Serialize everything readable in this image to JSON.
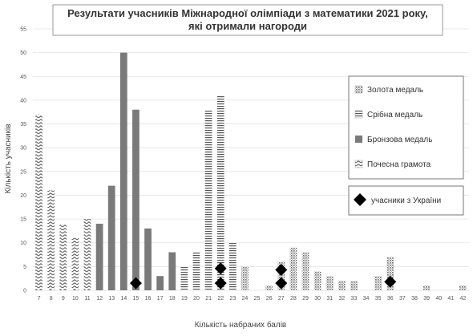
{
  "chart_data": {
    "type": "bar",
    "title_line1": "Результати учасників Міжнародної олімпіади з математики 2021 року,",
    "title_line2": "які отримали нагороди",
    "xlabel": "Кількість набраних балів",
    "ylabel": "Кількість учасників",
    "ylim": [
      0,
      55
    ],
    "yticks": [
      0,
      5,
      10,
      15,
      20,
      25,
      30,
      35,
      40,
      45,
      50,
      55
    ],
    "grid": true,
    "legend_placement": "right",
    "categories": [
      7,
      8,
      9,
      10,
      11,
      12,
      13,
      14,
      15,
      16,
      17,
      18,
      19,
      20,
      21,
      22,
      23,
      24,
      25,
      26,
      27,
      28,
      29,
      30,
      31,
      32,
      33,
      34,
      35,
      36,
      37,
      38,
      39,
      40,
      41,
      42
    ],
    "series": [
      {
        "name": "Золота медаль",
        "pattern": "dots",
        "values": [
          0,
          0,
          0,
          0,
          0,
          0,
          0,
          0,
          0,
          0,
          0,
          0,
          0,
          0,
          0,
          0,
          0,
          5,
          0,
          1,
          6,
          9,
          8,
          4,
          3,
          2,
          2,
          0,
          3,
          7,
          0,
          0,
          1,
          0,
          0,
          1
        ]
      },
      {
        "name": "Срібна медаль",
        "pattern": "hlines",
        "values": [
          0,
          0,
          0,
          0,
          0,
          0,
          0,
          0,
          0,
          0,
          0,
          0,
          5,
          8,
          38,
          41,
          10,
          0,
          0,
          0,
          0,
          0,
          0,
          0,
          0,
          0,
          0,
          0,
          0,
          0,
          0,
          0,
          0,
          0,
          0,
          0
        ]
      },
      {
        "name": "Бронзова медаль",
        "pattern": "solid",
        "values": [
          0,
          0,
          0,
          0,
          0,
          14,
          22,
          50,
          38,
          13,
          3,
          8,
          0,
          0,
          0,
          0,
          0,
          0,
          0,
          0,
          0,
          0,
          0,
          0,
          0,
          0,
          0,
          0,
          0,
          0,
          0,
          0,
          0,
          0,
          0,
          0
        ]
      },
      {
        "name": "Почесна грамота",
        "pattern": "zigzag",
        "values": [
          37,
          21,
          14,
          11,
          15,
          0,
          0,
          0,
          0,
          0,
          0,
          0,
          0,
          0,
          0,
          0,
          0,
          0,
          0,
          0,
          0,
          0,
          0,
          0,
          0,
          0,
          0,
          0,
          0,
          0,
          0,
          0,
          0,
          0,
          0,
          0
        ]
      }
    ],
    "markers": {
      "name": "учасники з України",
      "points": [
        {
          "x": 15,
          "y": 1.5
        },
        {
          "x": 22,
          "y": 1.5
        },
        {
          "x": 22,
          "y": 4.6
        },
        {
          "x": 27,
          "y": 1.5
        },
        {
          "x": 27,
          "y": 4.3
        },
        {
          "x": 36,
          "y": 1.8
        }
      ]
    },
    "colors": {
      "bars": "#7a7a7a",
      "marker": "#000000",
      "grid": "#e3e3e3"
    }
  }
}
